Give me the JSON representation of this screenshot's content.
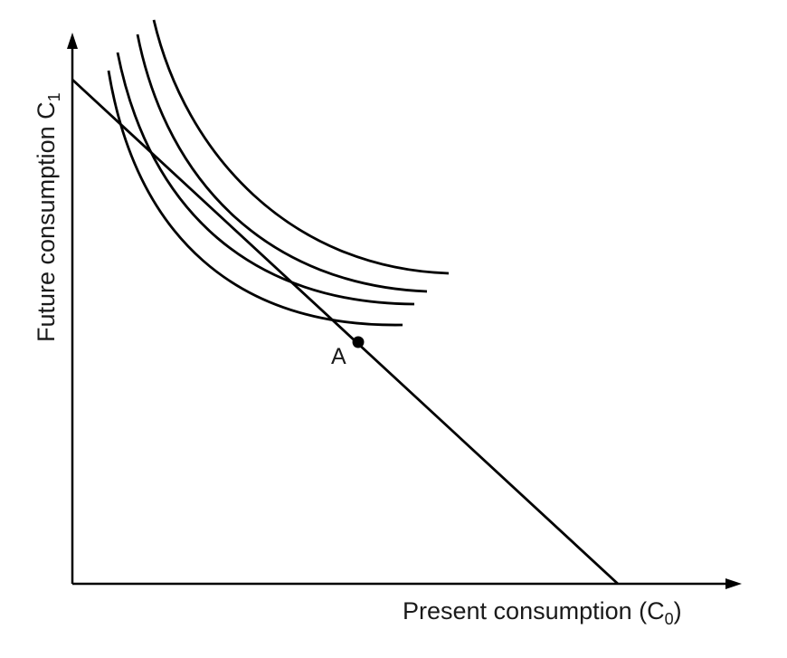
{
  "axes": {
    "x_label": "Present consumption (C",
    "x_label_sub": "0",
    "x_label_close": ")",
    "y_label": "Future consumption C",
    "y_label_sub": "1"
  },
  "budget_line": {
    "name": "budget-line"
  },
  "indifference_curves": [
    {
      "name": "indifference-curve-1"
    },
    {
      "name": "indifference-curve-2"
    },
    {
      "name": "indifference-curve-3"
    },
    {
      "name": "indifference-curve-4"
    }
  ],
  "point": {
    "label": "A"
  },
  "colors": {
    "stroke": "#000000",
    "text": "#1a1a1a",
    "background": "#ffffff"
  }
}
